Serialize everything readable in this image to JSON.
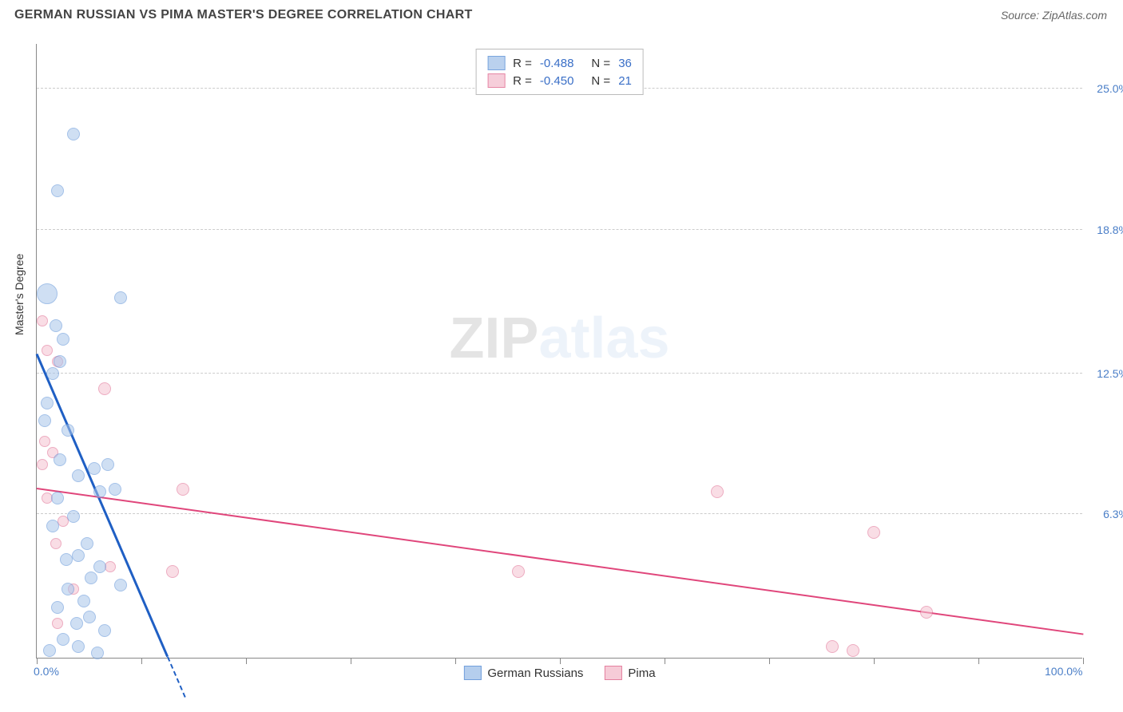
{
  "header": {
    "title": "GERMAN RUSSIAN VS PIMA MASTER'S DEGREE CORRELATION CHART",
    "source": "Source: ZipAtlas.com"
  },
  "watermark": {
    "bold": "ZIP",
    "light": "atlas"
  },
  "chart": {
    "type": "scatter",
    "y_axis_label": "Master's Degree",
    "xlim": [
      0,
      100
    ],
    "ylim": [
      0,
      27
    ],
    "x_ticks_pct": [
      0,
      10,
      20,
      30,
      40,
      50,
      60,
      70,
      80,
      90,
      100
    ],
    "x_tick_labels": {
      "0": "0.0%",
      "100": "100.0%"
    },
    "y_gridlines": [
      6.3,
      12.5,
      18.8,
      25.0
    ],
    "y_tick_labels": [
      "6.3%",
      "12.5%",
      "18.8%",
      "25.0%"
    ],
    "background_color": "#ffffff",
    "grid_color": "#cccccc",
    "axis_color": "#888888",
    "tick_label_color": "#4a7ec7",
    "series": [
      {
        "name": "German Russians",
        "fill": "#a9c6eb",
        "stroke": "#5a8fd6",
        "fill_opacity": 0.55,
        "marker_radius": 8,
        "trend_color": "#1f5fc4",
        "trend_width": 3,
        "correlation": {
          "R_label": "R =",
          "R": "-0.488",
          "N_label": "N =",
          "N": "36"
        },
        "trend": {
          "x1": 0,
          "y1": 13.3,
          "x2": 12.5,
          "y2": 0
        },
        "points": [
          {
            "x": 3.5,
            "y": 23.0,
            "r": 8
          },
          {
            "x": 2.0,
            "y": 20.5,
            "r": 8
          },
          {
            "x": 1.0,
            "y": 16.0,
            "r": 13
          },
          {
            "x": 8.0,
            "y": 15.8,
            "r": 8
          },
          {
            "x": 1.8,
            "y": 14.6,
            "r": 8
          },
          {
            "x": 2.5,
            "y": 14.0,
            "r": 8
          },
          {
            "x": 2.2,
            "y": 13.0,
            "r": 8
          },
          {
            "x": 1.5,
            "y": 12.5,
            "r": 8
          },
          {
            "x": 1.0,
            "y": 11.2,
            "r": 8
          },
          {
            "x": 0.8,
            "y": 10.4,
            "r": 8
          },
          {
            "x": 3.0,
            "y": 10.0,
            "r": 8
          },
          {
            "x": 2.2,
            "y": 8.7,
            "r": 8
          },
          {
            "x": 6.8,
            "y": 8.5,
            "r": 8
          },
          {
            "x": 5.5,
            "y": 8.3,
            "r": 8
          },
          {
            "x": 4.0,
            "y": 8.0,
            "r": 8
          },
          {
            "x": 7.5,
            "y": 7.4,
            "r": 8
          },
          {
            "x": 6.0,
            "y": 7.3,
            "r": 8
          },
          {
            "x": 2.0,
            "y": 7.0,
            "r": 8
          },
          {
            "x": 3.5,
            "y": 6.2,
            "r": 8
          },
          {
            "x": 1.5,
            "y": 5.8,
            "r": 8
          },
          {
            "x": 4.8,
            "y": 5.0,
            "r": 8
          },
          {
            "x": 4.0,
            "y": 4.5,
            "r": 8
          },
          {
            "x": 2.8,
            "y": 4.3,
            "r": 8
          },
          {
            "x": 6.0,
            "y": 4.0,
            "r": 8
          },
          {
            "x": 5.2,
            "y": 3.5,
            "r": 8
          },
          {
            "x": 8.0,
            "y": 3.2,
            "r": 8
          },
          {
            "x": 3.0,
            "y": 3.0,
            "r": 8
          },
          {
            "x": 4.5,
            "y": 2.5,
            "r": 8
          },
          {
            "x": 2.0,
            "y": 2.2,
            "r": 8
          },
          {
            "x": 5.0,
            "y": 1.8,
            "r": 8
          },
          {
            "x": 3.8,
            "y": 1.5,
            "r": 8
          },
          {
            "x": 6.5,
            "y": 1.2,
            "r": 8
          },
          {
            "x": 2.5,
            "y": 0.8,
            "r": 8
          },
          {
            "x": 4.0,
            "y": 0.5,
            "r": 8
          },
          {
            "x": 1.2,
            "y": 0.3,
            "r": 8
          },
          {
            "x": 5.8,
            "y": 0.2,
            "r": 8
          }
        ]
      },
      {
        "name": "Pima",
        "fill": "#f5c2d1",
        "stroke": "#e06a8f",
        "fill_opacity": 0.55,
        "marker_radius": 8,
        "trend_color": "#e0467b",
        "trend_width": 2,
        "correlation": {
          "R_label": "R =",
          "R": "-0.450",
          "N_label": "N =",
          "N": "21"
        },
        "trend": {
          "x1": 0,
          "y1": 7.4,
          "x2": 100,
          "y2": 1.0
        },
        "points": [
          {
            "x": 0.5,
            "y": 14.8,
            "r": 7
          },
          {
            "x": 1.0,
            "y": 13.5,
            "r": 7
          },
          {
            "x": 2.0,
            "y": 13.0,
            "r": 7
          },
          {
            "x": 6.5,
            "y": 11.8,
            "r": 8
          },
          {
            "x": 0.8,
            "y": 9.5,
            "r": 7
          },
          {
            "x": 1.5,
            "y": 9.0,
            "r": 7
          },
          {
            "x": 0.5,
            "y": 8.5,
            "r": 7
          },
          {
            "x": 14.0,
            "y": 7.4,
            "r": 8
          },
          {
            "x": 1.0,
            "y": 7.0,
            "r": 7
          },
          {
            "x": 65.0,
            "y": 7.3,
            "r": 8
          },
          {
            "x": 2.5,
            "y": 6.0,
            "r": 7
          },
          {
            "x": 80.0,
            "y": 5.5,
            "r": 8
          },
          {
            "x": 1.8,
            "y": 5.0,
            "r": 7
          },
          {
            "x": 7.0,
            "y": 4.0,
            "r": 7
          },
          {
            "x": 13.0,
            "y": 3.8,
            "r": 8
          },
          {
            "x": 46.0,
            "y": 3.8,
            "r": 8
          },
          {
            "x": 3.5,
            "y": 3.0,
            "r": 7
          },
          {
            "x": 85.0,
            "y": 2.0,
            "r": 8
          },
          {
            "x": 2.0,
            "y": 1.5,
            "r": 7
          },
          {
            "x": 76.0,
            "y": 0.5,
            "r": 8
          },
          {
            "x": 78.0,
            "y": 0.3,
            "r": 8
          }
        ]
      }
    ]
  }
}
